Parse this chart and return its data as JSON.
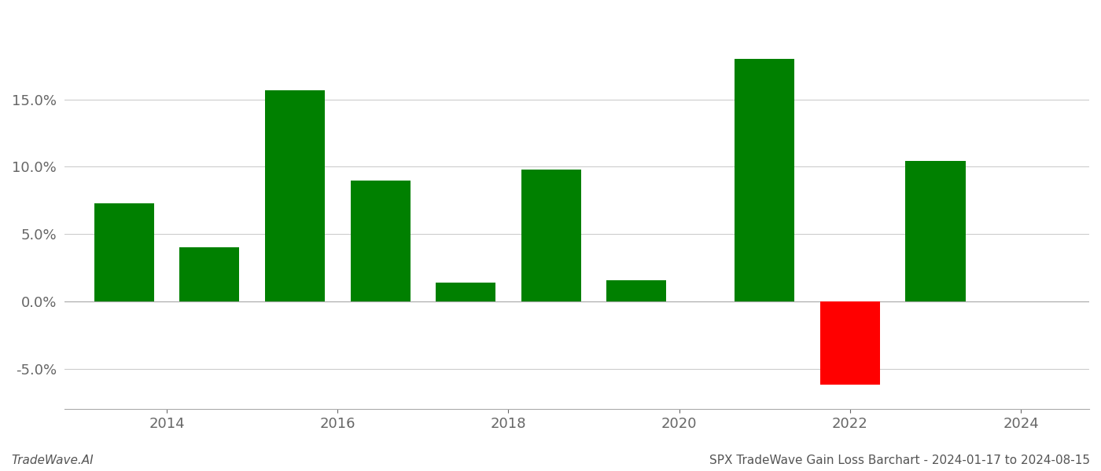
{
  "years": [
    2013.5,
    2014.5,
    2015.5,
    2016.5,
    2017.5,
    2018.5,
    2019.5,
    2021,
    2022,
    2023
  ],
  "values": [
    0.073,
    0.04,
    0.157,
    0.09,
    0.014,
    0.098,
    0.016,
    0.18,
    -0.062,
    0.104
  ],
  "bar_color_pos": "#008000",
  "bar_color_neg": "#ff0000",
  "background_color": "#ffffff",
  "grid_color": "#cccccc",
  "footer_left": "TradeWave.AI",
  "footer_right": "SPX TradeWave Gain Loss Barchart - 2024-01-17 to 2024-08-15",
  "xlim_min": 2012.8,
  "xlim_max": 2024.8,
  "ylim_min": -0.08,
  "ylim_max": 0.215,
  "yticks": [
    -0.05,
    0.0,
    0.05,
    0.1,
    0.15
  ],
  "xticks": [
    2014,
    2016,
    2018,
    2020,
    2022,
    2024
  ],
  "bar_width": 0.7,
  "tick_fontsize": 13,
  "footer_fontsize": 11
}
